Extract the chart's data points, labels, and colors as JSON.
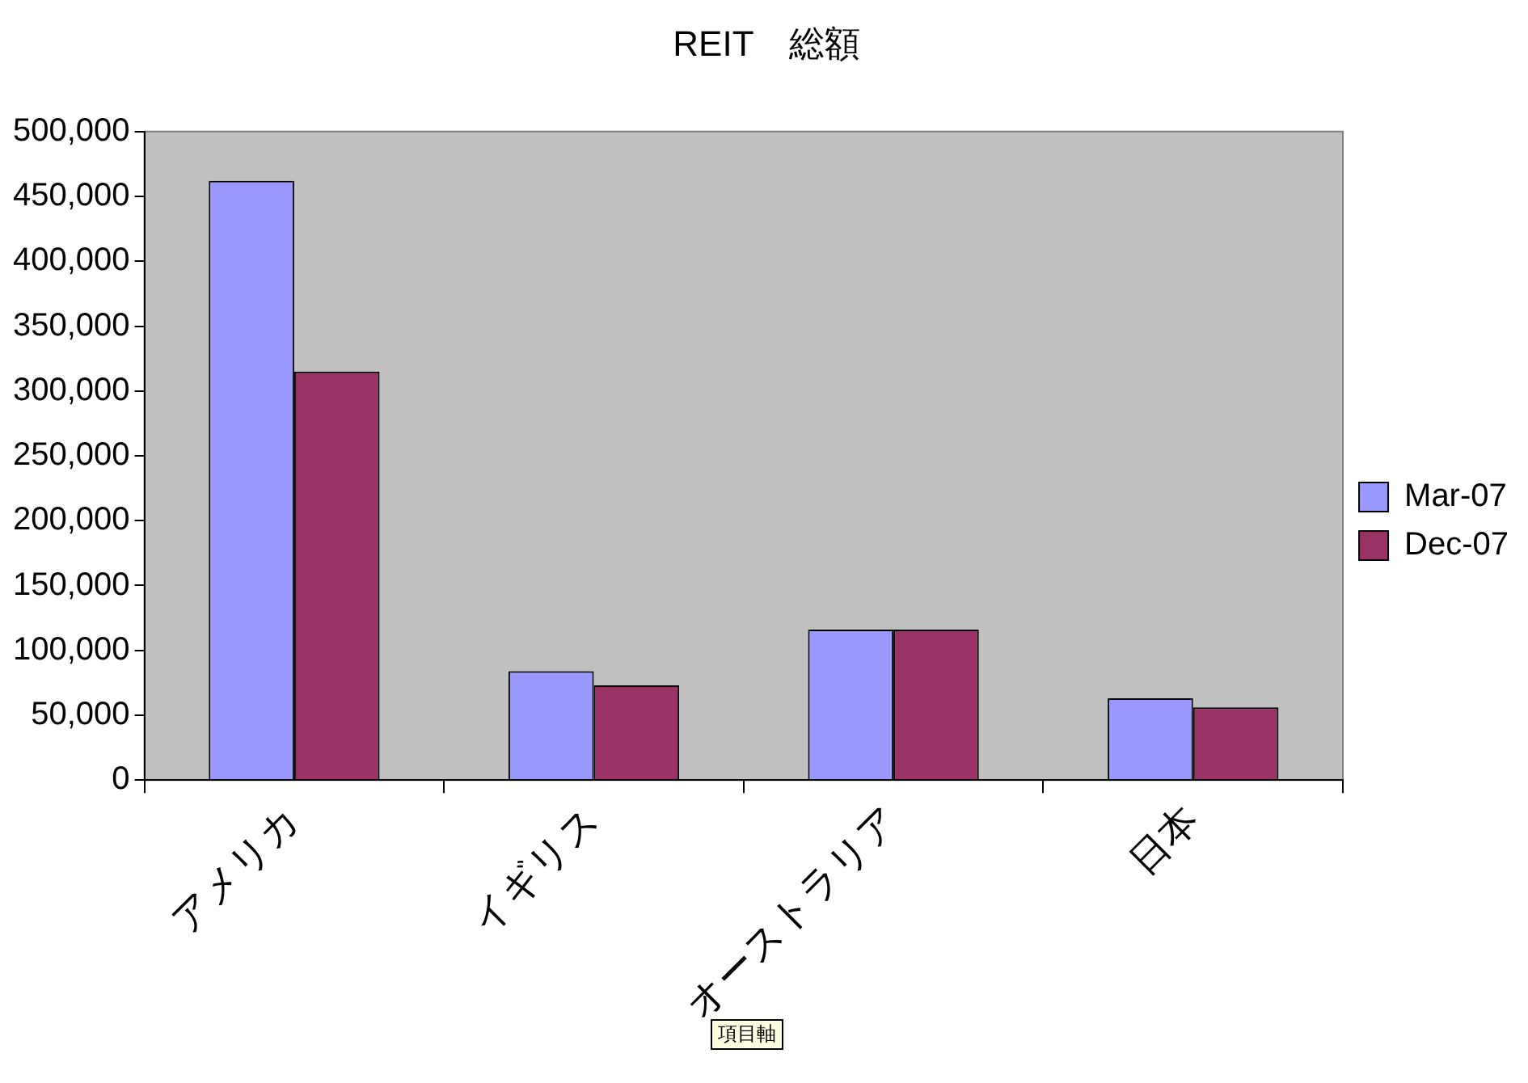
{
  "chart_data": {
    "type": "bar",
    "title": "REIT　総額",
    "categories": [
      "アメリカ",
      "イギリス",
      "オーストラリア",
      "日本"
    ],
    "series": [
      {
        "name": "Mar-07",
        "color": "#9999ff",
        "values": [
          462000,
          84000,
          116000,
          63000
        ]
      },
      {
        "name": "Dec-07",
        "color": "#993366",
        "values": [
          315000,
          73000,
          116000,
          56000
        ]
      }
    ],
    "ylim": [
      0,
      500000
    ],
    "yticks": [
      {
        "value": 0,
        "label": "0"
      },
      {
        "value": 50000,
        "label": "50,000"
      },
      {
        "value": 100000,
        "label": "100,000"
      },
      {
        "value": 150000,
        "label": "150,000"
      },
      {
        "value": 200000,
        "label": "200,000"
      },
      {
        "value": 250000,
        "label": "250,000"
      },
      {
        "value": 300000,
        "label": "300,000"
      },
      {
        "value": 350000,
        "label": "350,000"
      },
      {
        "value": 400000,
        "label": "400,000"
      },
      {
        "value": 450000,
        "label": "450,000"
      },
      {
        "value": 500000,
        "label": "500,000"
      }
    ],
    "grid": false,
    "legend": "right",
    "annotations": [
      "項目軸"
    ]
  }
}
